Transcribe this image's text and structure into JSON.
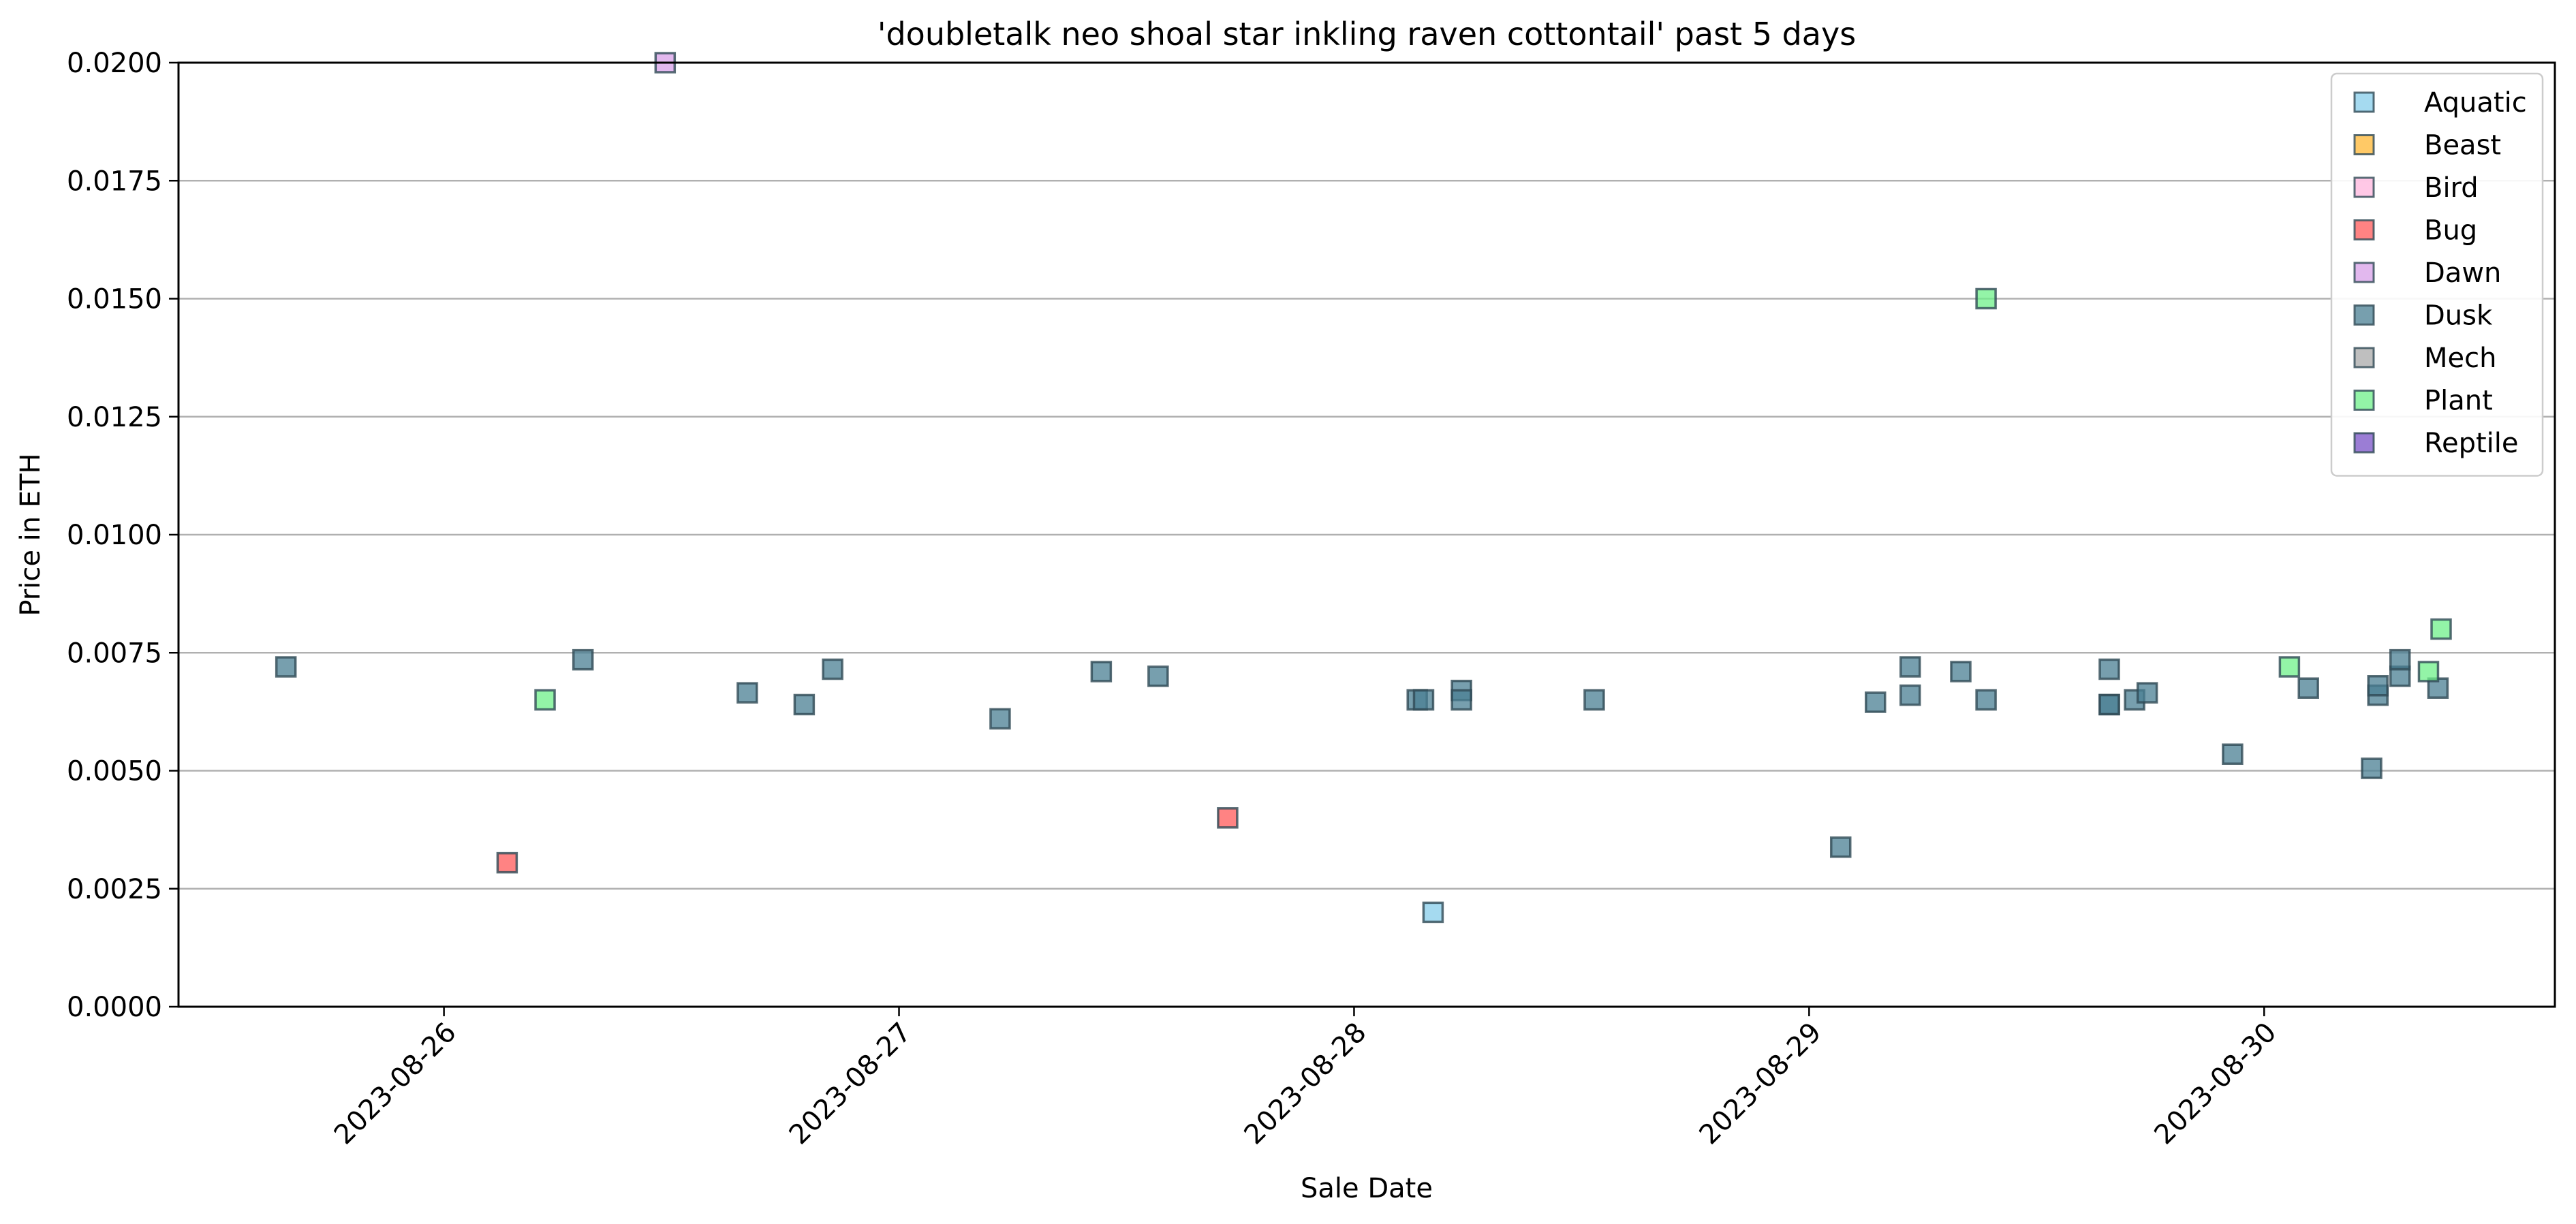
{
  "chart_data": {
    "type": "scatter",
    "title": "'doubletalk neo shoal star inkling raven cottontail' past 5 days",
    "xlabel": "Sale Date",
    "ylabel": "Price in ETH",
    "x_type": "date",
    "xlim": [
      "2023-08-25 10:00",
      "2023-08-30 15:20"
    ],
    "ylim": [
      0,
      0.02
    ],
    "x_ticks": [
      "2023-08-26",
      "2023-08-27",
      "2023-08-28",
      "2023-08-29",
      "2023-08-30"
    ],
    "y_ticks": [
      "0.0000",
      "0.0025",
      "0.0050",
      "0.0075",
      "0.0100",
      "0.0125",
      "0.0150",
      "0.0175",
      "0.0200"
    ],
    "grid": "horizontal",
    "legend_position": "top-right",
    "marker": "square",
    "series": [
      {
        "name": "Aquatic",
        "color": "#87ceeb",
        "points": [
          {
            "x": "2023-08-28 04:10",
            "y": 0.002
          }
        ]
      },
      {
        "name": "Beast",
        "color": "#ffb733",
        "points": []
      },
      {
        "name": "Bird",
        "color": "#ffb6de",
        "points": []
      },
      {
        "name": "Bug",
        "color": "#ff5a5a",
        "points": [
          {
            "x": "2023-08-26 03:20",
            "y": 0.00305
          },
          {
            "x": "2023-08-27 17:20",
            "y": 0.004
          }
        ]
      },
      {
        "name": "Dawn",
        "color": "#d8a0e8",
        "points": [
          {
            "x": "2023-08-26 11:40",
            "y": 0.02
          }
        ]
      },
      {
        "name": "Dusk",
        "color": "#4a7f93",
        "points": [
          {
            "x": "2023-08-25 15:40",
            "y": 0.0072
          },
          {
            "x": "2023-08-26 07:20",
            "y": 0.00735
          },
          {
            "x": "2023-08-26 16:00",
            "y": 0.00665
          },
          {
            "x": "2023-08-26 19:00",
            "y": 0.0064
          },
          {
            "x": "2023-08-26 20:30",
            "y": 0.00715
          },
          {
            "x": "2023-08-27 05:20",
            "y": 0.0061
          },
          {
            "x": "2023-08-27 10:40",
            "y": 0.0071
          },
          {
            "x": "2023-08-27 13:40",
            "y": 0.007
          },
          {
            "x": "2023-08-28 03:20",
            "y": 0.0065
          },
          {
            "x": "2023-08-28 03:40",
            "y": 0.0065
          },
          {
            "x": "2023-08-28 05:40",
            "y": 0.0067
          },
          {
            "x": "2023-08-28 05:40",
            "y": 0.0065
          },
          {
            "x": "2023-08-28 12:40",
            "y": 0.0065
          },
          {
            "x": "2023-08-29 01:40",
            "y": 0.00338
          },
          {
            "x": "2023-08-29 03:30",
            "y": 0.00645
          },
          {
            "x": "2023-08-29 05:20",
            "y": 0.0072
          },
          {
            "x": "2023-08-29 05:20",
            "y": 0.0066
          },
          {
            "x": "2023-08-29 08:00",
            "y": 0.0071
          },
          {
            "x": "2023-08-29 09:20",
            "y": 0.0065
          },
          {
            "x": "2023-08-29 15:50",
            "y": 0.00715
          },
          {
            "x": "2023-08-29 15:50",
            "y": 0.0064
          },
          {
            "x": "2023-08-29 15:50",
            "y": 0.0064
          },
          {
            "x": "2023-08-29 17:10",
            "y": 0.0065
          },
          {
            "x": "2023-08-29 17:50",
            "y": 0.00665
          },
          {
            "x": "2023-08-29 22:20",
            "y": 0.00535
          },
          {
            "x": "2023-08-30 02:20",
            "y": 0.00675
          },
          {
            "x": "2023-08-30 05:40",
            "y": 0.00505
          },
          {
            "x": "2023-08-30 06:00",
            "y": 0.0066
          },
          {
            "x": "2023-08-30 06:00",
            "y": 0.0068
          },
          {
            "x": "2023-08-30 07:10",
            "y": 0.007
          },
          {
            "x": "2023-08-30 07:10",
            "y": 0.00735
          },
          {
            "x": "2023-08-30 09:10",
            "y": 0.00675
          }
        ]
      },
      {
        "name": "Mech",
        "color": "#a9a9a9",
        "points": []
      },
      {
        "name": "Plant",
        "color": "#6ff08a",
        "points": [
          {
            "x": "2023-08-26 05:20",
            "y": 0.0065
          },
          {
            "x": "2023-08-29 09:20",
            "y": 0.015
          },
          {
            "x": "2023-08-30 01:20",
            "y": 0.0072
          },
          {
            "x": "2023-08-30 08:40",
            "y": 0.0071
          },
          {
            "x": "2023-08-30 09:20",
            "y": 0.008
          }
        ]
      },
      {
        "name": "Reptile",
        "color": "#7a52c7",
        "points": []
      }
    ]
  }
}
